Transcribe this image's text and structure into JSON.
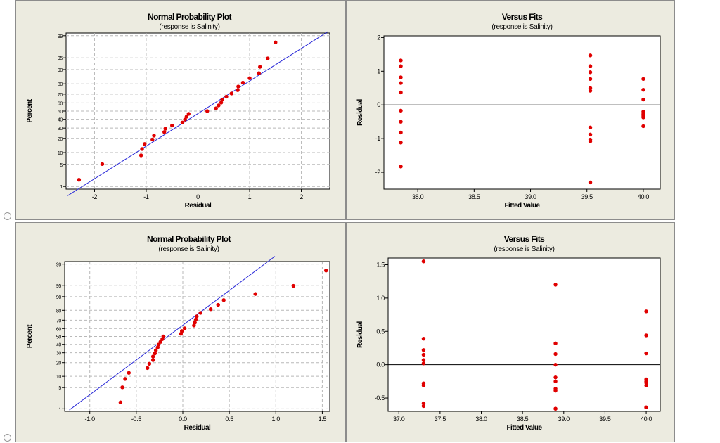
{
  "chart_data": [
    {
      "type": "scatter",
      "subtype": "normal_probability_plot",
      "title": "Normal Probability Plot",
      "subtitle": "(response is Salinity)",
      "xlabel": "Residual",
      "ylabel": "Percent",
      "xlim": [
        -2.55,
        2.55
      ],
      "xticks": [
        -2,
        -1,
        0,
        1,
        2
      ],
      "xtick_labels": [
        "-2",
        "-1",
        "0",
        "1",
        "2"
      ],
      "yscale": "normal-probability",
      "yticks": [
        1,
        5,
        10,
        20,
        30,
        40,
        50,
        60,
        70,
        80,
        90,
        95,
        99
      ],
      "ytick_labels": [
        "1",
        "5",
        "10",
        "20",
        "30",
        "40",
        "50",
        "60",
        "70",
        "80",
        "90",
        "95",
        "99"
      ],
      "grid": true,
      "fit_line": {
        "x": [
          -2.52,
          2.52
        ],
        "percent": [
          0.45,
          99.3
        ]
      },
      "x": [
        -2.3,
        -1.85,
        -1.1,
        -1.08,
        -1.03,
        -0.88,
        -0.85,
        -0.65,
        -0.63,
        -0.5,
        -0.3,
        -0.25,
        -0.22,
        -0.18,
        0.18,
        0.35,
        0.4,
        0.45,
        0.47,
        0.55,
        0.65,
        0.77,
        0.78,
        0.87,
        1.0,
        1.18,
        1.2,
        1.35,
        1.5
      ],
      "y": [
        1.7,
        5.1,
        8.6,
        12.1,
        15.5,
        19.0,
        22.4,
        25.9,
        29.3,
        32.8,
        36.2,
        39.7,
        43.1,
        46.6,
        50.0,
        53.4,
        56.9,
        60.3,
        63.8,
        67.2,
        70.7,
        74.1,
        77.6,
        81.0,
        84.5,
        87.9,
        91.4,
        94.8,
        98.3
      ]
    },
    {
      "type": "scatter",
      "subtype": "residuals_versus_fits",
      "title": "Versus Fits",
      "subtitle": "(response is Salinity)",
      "xlabel": "Fitted Value",
      "ylabel": "Residual",
      "xlim": [
        37.7,
        40.15
      ],
      "ylim": [
        -2.5,
        2.05
      ],
      "xticks": [
        38.0,
        38.5,
        39.0,
        39.5,
        40.0
      ],
      "xtick_labels": [
        "38.0",
        "38.5",
        "39.0",
        "39.5",
        "40.0"
      ],
      "yticks": [
        -2,
        -1,
        0,
        1,
        2
      ],
      "ytick_labels": [
        "-2",
        "-1",
        "0",
        "1",
        "2"
      ],
      "reference_line": 0,
      "grid": false,
      "x": [
        37.85,
        37.85,
        37.85,
        37.85,
        37.85,
        37.85,
        37.85,
        37.85,
        37.85,
        37.85,
        39.53,
        39.53,
        39.53,
        39.53,
        39.53,
        39.53,
        39.53,
        39.53,
        39.53,
        39.53,
        39.53,
        40.0,
        40.0,
        40.0,
        40.0,
        40.0,
        40.0,
        40.0,
        40.0
      ],
      "y": [
        1.32,
        1.15,
        0.82,
        0.65,
        0.37,
        -0.17,
        -0.5,
        -0.82,
        -1.12,
        -1.83,
        1.47,
        1.15,
        0.97,
        0.77,
        0.5,
        0.42,
        -0.67,
        -0.88,
        -1.03,
        -1.08,
        -2.3,
        0.77,
        0.45,
        0.16,
        -0.2,
        -0.27,
        -0.33,
        -0.37,
        -0.63
      ]
    },
    {
      "type": "scatter",
      "subtype": "normal_probability_plot",
      "title": "Normal Probability Plot",
      "subtitle": "(response is Salinity)",
      "xlabel": "Residual",
      "ylabel": "Percent",
      "xlim": [
        -1.27,
        1.58
      ],
      "xticks": [
        -1.0,
        -0.5,
        0.0,
        0.5,
        1.0,
        1.5
      ],
      "xtick_labels": [
        "-1.0",
        "-0.5",
        "0.0",
        "0.5",
        "1.0",
        "1.5"
      ],
      "yscale": "normal-probability",
      "yticks": [
        1,
        5,
        10,
        20,
        30,
        40,
        50,
        60,
        70,
        80,
        90,
        95,
        99
      ],
      "ytick_labels": [
        "1",
        "5",
        "10",
        "20",
        "30",
        "40",
        "50",
        "60",
        "70",
        "80",
        "90",
        "95",
        "99"
      ],
      "grid": true,
      "fit_line": {
        "x": [
          -1.22,
          0.99
        ],
        "percent": [
          0.9,
          99.5
        ]
      },
      "x": [
        -0.67,
        -0.65,
        -0.62,
        -0.58,
        -0.38,
        -0.36,
        -0.32,
        -0.32,
        -0.3,
        -0.29,
        -0.27,
        -0.26,
        -0.24,
        -0.22,
        -0.21,
        -0.02,
        -0.01,
        0.02,
        0.12,
        0.13,
        0.14,
        0.15,
        0.19,
        0.3,
        0.38,
        0.44,
        0.78,
        1.19,
        1.54
      ],
      "y": [
        1.7,
        5.1,
        8.6,
        12.1,
        15.5,
        19.0,
        22.4,
        25.9,
        29.3,
        32.8,
        36.2,
        39.7,
        43.1,
        46.6,
        50.0,
        53.4,
        56.9,
        60.3,
        63.8,
        67.2,
        70.7,
        74.1,
        77.6,
        81.0,
        84.5,
        87.9,
        91.4,
        94.8,
        98.3
      ]
    },
    {
      "type": "scatter",
      "subtype": "residuals_versus_fits",
      "title": "Versus Fits",
      "subtitle": "(response is Salinity)",
      "xlabel": "Fitted Value",
      "ylabel": "Residual",
      "xlim": [
        36.87,
        40.17
      ],
      "ylim": [
        -0.7,
        1.6
      ],
      "xticks": [
        37.0,
        37.5,
        38.0,
        38.5,
        39.0,
        39.5,
        40.0
      ],
      "xtick_labels": [
        "37.0",
        "37.5",
        "38.0",
        "38.5",
        "39.0",
        "39.5",
        "40.0"
      ],
      "yticks": [
        -0.5,
        0.0,
        0.5,
        1.0,
        1.5
      ],
      "ytick_labels": [
        "-0.5",
        "0.0",
        "0.5",
        "1.0",
        "1.5"
      ],
      "reference_line": 0,
      "grid": false,
      "x": [
        37.3,
        37.3,
        37.3,
        37.3,
        37.3,
        37.3,
        37.3,
        37.3,
        37.3,
        37.3,
        38.9,
        38.9,
        38.9,
        38.9,
        38.9,
        38.9,
        38.9,
        38.9,
        38.9,
        38.9,
        40.0,
        40.0,
        40.0,
        40.0,
        40.0,
        40.0,
        40.0,
        40.0,
        40.0
      ],
      "y": [
        1.55,
        0.39,
        0.22,
        0.15,
        0.07,
        0.02,
        -0.28,
        -0.31,
        -0.58,
        -0.62,
        1.2,
        0.32,
        0.16,
        0.0,
        -0.19,
        -0.25,
        -0.36,
        -0.39,
        -0.66,
        -0.66,
        0.8,
        0.44,
        0.17,
        -0.22,
        -0.25,
        -0.27,
        -0.31,
        -0.64,
        -0.64
      ]
    }
  ]
}
